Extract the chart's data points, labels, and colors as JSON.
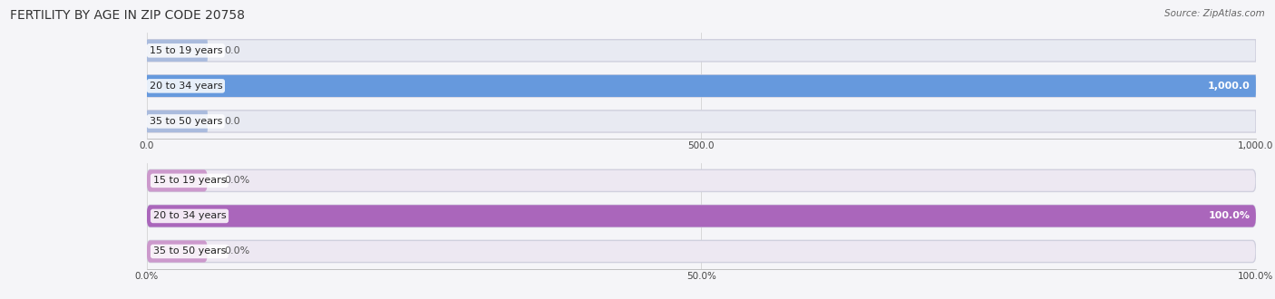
{
  "title": "FERTILITY BY AGE IN ZIP CODE 20758",
  "source": "Source: ZipAtlas.com",
  "top_chart": {
    "categories": [
      "15 to 19 years",
      "20 to 34 years",
      "35 to 50 years"
    ],
    "values": [
      0.0,
      1000.0,
      0.0
    ],
    "xlim": [
      0,
      1000
    ],
    "xticks": [
      0.0,
      500.0,
      1000.0
    ],
    "xticklabels": [
      "0.0",
      "500.0",
      "1,000.0"
    ],
    "bar_color_full": "#6699dd",
    "bar_color_empty": "#aabbdd",
    "bar_bg_color": "#e8eaf2",
    "label_color_inside": "#ffffff",
    "label_color_outside": "#555555",
    "value_labels": [
      "0.0",
      "1,000.0",
      "0.0"
    ]
  },
  "bottom_chart": {
    "categories": [
      "15 to 19 years",
      "20 to 34 years",
      "35 to 50 years"
    ],
    "values": [
      0.0,
      100.0,
      0.0
    ],
    "xlim": [
      0,
      100
    ],
    "xticks": [
      0.0,
      50.0,
      100.0
    ],
    "xticklabels": [
      "0.0%",
      "50.0%",
      "100.0%"
    ],
    "bar_color_full": "#aa66bb",
    "bar_color_empty": "#cc99cc",
    "bar_bg_color": "#ede8f2",
    "label_color_inside": "#ffffff",
    "label_color_outside": "#555555",
    "value_labels": [
      "0.0%",
      "100.0%",
      "0.0%"
    ]
  },
  "fig_bg_color": "#f5f5f8",
  "title_fontsize": 10,
  "label_fontsize": 8,
  "tick_fontsize": 7.5,
  "source_fontsize": 7.5
}
